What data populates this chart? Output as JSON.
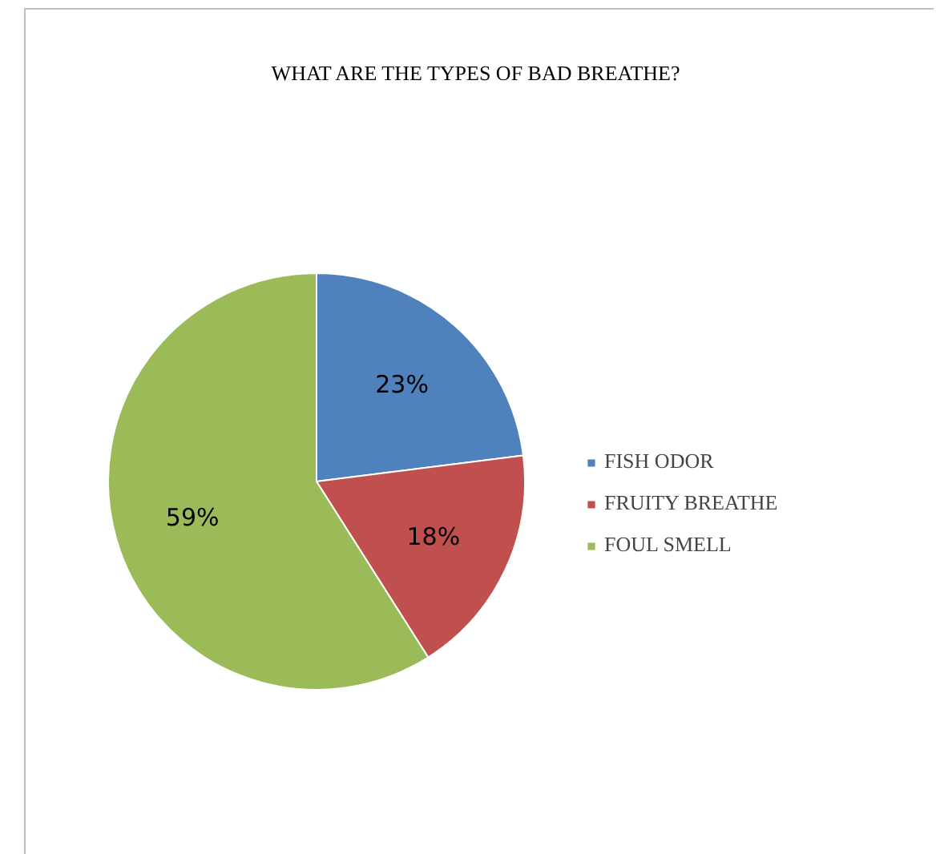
{
  "chart_data": {
    "type": "pie",
    "title": "WHAT ARE THE TYPES OF BAD BREATHE?",
    "categories": [
      "FISH ODOR",
      "FRUITY BREATHE",
      "FOUL SMELL"
    ],
    "values": [
      23,
      18,
      59
    ],
    "colors": [
      "#4f81bd",
      "#c0504d",
      "#9bbb59"
    ],
    "value_labels": [
      "23%",
      "18%",
      "59%"
    ],
    "legend": "right"
  }
}
